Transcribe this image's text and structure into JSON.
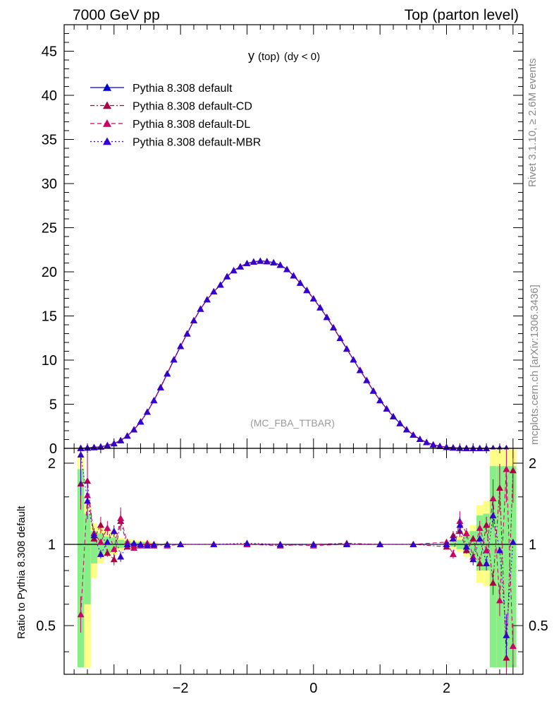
{
  "header": {
    "left": "7000 GeV pp",
    "right": "Top (parton level)"
  },
  "side_labels": {
    "rivet": "Rivet 3.1.10, ≥ 2.6M events",
    "mcplots": "mcplots.cern.ch [arXiv:1306.3436]"
  },
  "observable": {
    "main": "y",
    "sub": "(top)",
    "cond": "(dy < 0)"
  },
  "watermark": "(MC_FBA_TTBAR)",
  "ratio_ylabel": "Ratio to Pythia 8.308 default",
  "chart_data": [
    {
      "type": "line",
      "title": "y (top) (dy < 0)",
      "xlabel": "",
      "ylabel": "",
      "xlim": [
        -3.75,
        3.15
      ],
      "ylim": [
        0,
        48
      ],
      "x_ticks": [
        "−2",
        "0",
        "2"
      ],
      "x_tick_values": [
        -2,
        0,
        2
      ],
      "y_ticks": [
        "0",
        "5",
        "10",
        "15",
        "20",
        "25",
        "30",
        "35",
        "40",
        "45"
      ],
      "y_tick_values": [
        0,
        5,
        10,
        15,
        20,
        25,
        30,
        35,
        40,
        45
      ],
      "legend_position": "top-left",
      "bin_width": 0.1,
      "x_start": -3.5,
      "series": [
        {
          "name": "Pythia 8.308 default",
          "color": "#0000cc",
          "dash": "solid",
          "values": [
            0.02,
            0.06,
            0.11,
            0.18,
            0.33,
            0.55,
            0.9,
            1.42,
            2.12,
            3.01,
            4.12,
            5.43,
            6.9,
            8.46,
            10.05,
            11.57,
            12.99,
            14.49,
            15.79,
            16.86,
            17.76,
            18.52,
            19.47,
            20.15,
            20.59,
            20.96,
            21.14,
            21.23,
            21.18,
            21.05,
            20.77,
            20.28,
            19.56,
            18.74,
            17.91,
            16.96,
            15.95,
            14.86,
            13.68,
            12.48,
            11.27,
            10.05,
            8.85,
            7.71,
            6.51,
            5.43,
            4.48,
            3.61,
            2.83,
            2.13,
            1.52,
            1.04,
            0.68,
            0.42,
            0.24,
            0.13,
            0.07,
            0.03,
            0.01,
            0.005,
            0.002,
            0.001,
            0.0005,
            0.0002,
            0.0001
          ]
        },
        {
          "name": "Pythia 8.308 default-CD",
          "color": "#aa0044",
          "dash": "6,3,2,3",
          "values": [
            0.02,
            0.06,
            0.11,
            0.18,
            0.33,
            0.55,
            0.9,
            1.42,
            2.12,
            3.01,
            4.12,
            5.43,
            6.9,
            8.46,
            10.05,
            11.57,
            12.99,
            14.49,
            15.79,
            16.86,
            17.76,
            18.52,
            19.47,
            20.15,
            20.59,
            20.96,
            21.14,
            21.23,
            21.18,
            21.05,
            20.77,
            20.28,
            19.56,
            18.74,
            17.91,
            16.96,
            15.95,
            14.86,
            13.68,
            12.48,
            11.27,
            10.05,
            8.85,
            7.71,
            6.51,
            5.43,
            4.48,
            3.61,
            2.83,
            2.13,
            1.52,
            1.04,
            0.68,
            0.42,
            0.24,
            0.13,
            0.07,
            0.03,
            0.01,
            0.005,
            0.002,
            0.001,
            0.0005,
            0.0002,
            0.0001
          ]
        },
        {
          "name": "Pythia 8.308 default-DL",
          "color": "#cc0066",
          "dash": "6,4",
          "values": [
            0.02,
            0.06,
            0.11,
            0.18,
            0.33,
            0.55,
            0.9,
            1.42,
            2.12,
            3.01,
            4.12,
            5.43,
            6.9,
            8.46,
            10.05,
            11.57,
            12.99,
            14.49,
            15.79,
            16.86,
            17.76,
            18.52,
            19.47,
            20.15,
            20.59,
            20.96,
            21.14,
            21.23,
            21.18,
            21.05,
            20.77,
            20.28,
            19.56,
            18.74,
            17.91,
            16.96,
            15.95,
            14.86,
            13.68,
            12.48,
            11.27,
            10.05,
            8.85,
            7.71,
            6.51,
            5.43,
            4.48,
            3.61,
            2.83,
            2.13,
            1.52,
            1.04,
            0.68,
            0.42,
            0.24,
            0.13,
            0.07,
            0.03,
            0.01,
            0.005,
            0.002,
            0.001,
            0.0005,
            0.0002,
            0.0001
          ]
        },
        {
          "name": "Pythia 8.308 default-MBR",
          "color": "#3300cc",
          "dash": "2,3",
          "values": [
            0.02,
            0.06,
            0.11,
            0.18,
            0.33,
            0.55,
            0.9,
            1.42,
            2.12,
            3.01,
            4.12,
            5.43,
            6.9,
            8.46,
            10.05,
            11.57,
            12.99,
            14.49,
            15.79,
            16.86,
            17.76,
            18.52,
            19.47,
            20.15,
            20.59,
            20.96,
            21.14,
            21.23,
            21.18,
            21.05,
            20.77,
            20.28,
            19.56,
            18.74,
            17.91,
            16.96,
            15.95,
            14.86,
            13.68,
            12.48,
            11.27,
            10.05,
            8.85,
            7.71,
            6.51,
            5.43,
            4.48,
            3.61,
            2.83,
            2.13,
            1.52,
            1.04,
            0.68,
            0.42,
            0.24,
            0.13,
            0.07,
            0.03,
            0.01,
            0.005,
            0.002,
            0.001,
            0.0005,
            0.0002,
            0.0001
          ]
        }
      ]
    },
    {
      "type": "line",
      "title": "",
      "xlabel": "",
      "ylabel": "Ratio to Pythia 8.308 default",
      "xlim": [
        -3.75,
        3.15
      ],
      "ylim": [
        0.33,
        2.27
      ],
      "y_ticks": [
        "0.5",
        "1",
        "2"
      ],
      "y_tick_values": [
        0.5,
        1,
        2
      ],
      "x_ticks": [
        "−2",
        "0",
        "2"
      ],
      "x_tick_values": [
        -2,
        0,
        2
      ],
      "x": [
        -3.5,
        -3.4,
        -3.3,
        -3.2,
        -3.1,
        -3.0,
        -2.9,
        -2.8,
        -2.7,
        -2.6,
        -2.5,
        -2.4,
        -2.2,
        -2.0,
        -1.5,
        -1.0,
        -0.5,
        0.0,
        0.5,
        1.0,
        1.5,
        2.0,
        2.1,
        2.2,
        2.3,
        2.4,
        2.5,
        2.6,
        2.7,
        2.8,
        2.9,
        3.0
      ],
      "band_yellow": [
        [
          0.35,
          2.1
        ],
        [
          0.35,
          1.45
        ],
        [
          0.75,
          1.2
        ],
        [
          0.85,
          1.15
        ],
        [
          0.9,
          1.12
        ],
        [
          0.92,
          1.1
        ],
        [
          0.95,
          1.06
        ],
        [
          0.96,
          1.05
        ],
        [
          0.97,
          1.04
        ],
        [
          0.98,
          1.03
        ],
        [
          0.98,
          1.03
        ],
        [
          0.98,
          1.02
        ],
        [
          0.99,
          1.02
        ],
        [
          0.99,
          1.01
        ],
        [
          0.99,
          1.01
        ],
        [
          0.99,
          1.01
        ],
        [
          0.99,
          1.01
        ],
        [
          0.99,
          1.01
        ],
        [
          0.99,
          1.01
        ],
        [
          0.99,
          1.01
        ],
        [
          0.99,
          1.01
        ],
        [
          0.98,
          1.02
        ],
        [
          0.96,
          1.04
        ],
        [
          0.94,
          1.07
        ],
        [
          0.9,
          1.12
        ],
        [
          0.86,
          1.18
        ],
        [
          0.72,
          1.4
        ],
        [
          0.7,
          1.45
        ],
        [
          0.35,
          2.25
        ],
        [
          0.35,
          2.25
        ],
        [
          0.35,
          2.25
        ],
        [
          0.35,
          2.25
        ]
      ],
      "band_green": [
        [
          0.35,
          1.9
        ],
        [
          0.6,
          1.3
        ],
        [
          0.85,
          1.12
        ],
        [
          0.9,
          1.1
        ],
        [
          0.93,
          1.07
        ],
        [
          0.95,
          1.06
        ],
        [
          0.97,
          1.04
        ],
        [
          0.98,
          1.03
        ],
        [
          0.98,
          1.02
        ],
        [
          0.99,
          1.02
        ],
        [
          0.99,
          1.02
        ],
        [
          0.99,
          1.01
        ],
        [
          0.995,
          1.01
        ],
        [
          0.995,
          1.005
        ],
        [
          0.995,
          1.005
        ],
        [
          0.995,
          1.005
        ],
        [
          0.995,
          1.005
        ],
        [
          0.995,
          1.005
        ],
        [
          0.995,
          1.005
        ],
        [
          0.995,
          1.005
        ],
        [
          0.995,
          1.005
        ],
        [
          0.99,
          1.01
        ],
        [
          0.98,
          1.02
        ],
        [
          0.96,
          1.04
        ],
        [
          0.93,
          1.08
        ],
        [
          0.9,
          1.12
        ],
        [
          0.8,
          1.28
        ],
        [
          0.8,
          1.3
        ],
        [
          0.35,
          1.95
        ],
        [
          0.35,
          1.95
        ],
        [
          0.35,
          1.95
        ],
        [
          0.35,
          1.95
        ]
      ],
      "series": [
        {
          "name": "Pythia 8.308 default",
          "color": "#0000cc",
          "values": [
            1,
            1,
            1,
            1,
            1,
            1,
            1,
            1,
            1,
            1,
            1,
            1,
            1,
            1,
            1,
            1,
            1,
            1,
            1,
            1,
            1,
            1,
            1,
            1,
            1,
            1,
            1,
            1,
            1,
            1,
            1,
            1
          ]
        },
        {
          "name": "Pythia 8.308 default-CD",
          "color": "#aa0044",
          "values": [
            1.68,
            1.72,
            1.05,
            1.18,
            0.93,
            0.88,
            1.22,
            0.98,
            0.99,
            1.0,
            1.0,
            0.99,
            1.0,
            1.0,
            1.0,
            1.0,
            0.99,
            1.0,
            1.01,
            1.0,
            1.0,
            0.98,
            1.08,
            1.12,
            0.95,
            1.05,
            0.85,
            1.18,
            0.72,
            1.62,
            0.38,
            1.88
          ]
        },
        {
          "name": "Pythia 8.308 default-DL",
          "color": "#cc0066",
          "values": [
            0.55,
            1.52,
            1.1,
            1.02,
            1.15,
            0.96,
            1.25,
            1.02,
            0.97,
            0.99,
            1.01,
            1.0,
            0.99,
            1.0,
            1.0,
            1.0,
            1.0,
            0.99,
            1.0,
            1.0,
            1.0,
            1.02,
            0.92,
            1.22,
            1.1,
            0.9,
            1.15,
            0.95,
            1.48,
            0.62,
            1.9,
            0.42
          ]
        },
        {
          "name": "Pythia 8.308 default-MBR",
          "color": "#3300cc",
          "values": [
            2.15,
            1.45,
            1.08,
            0.92,
            1.02,
            1.12,
            0.9,
            1.0,
            1.01,
            1.0,
            0.99,
            1.0,
            1.0,
            1.0,
            1.0,
            1.01,
            1.0,
            1.0,
            1.0,
            1.0,
            1.0,
            1.0,
            1.05,
            1.18,
            0.98,
            0.88,
            1.05,
            0.85,
            1.28,
            0.95,
            0.46,
            1.02
          ]
        }
      ]
    }
  ]
}
